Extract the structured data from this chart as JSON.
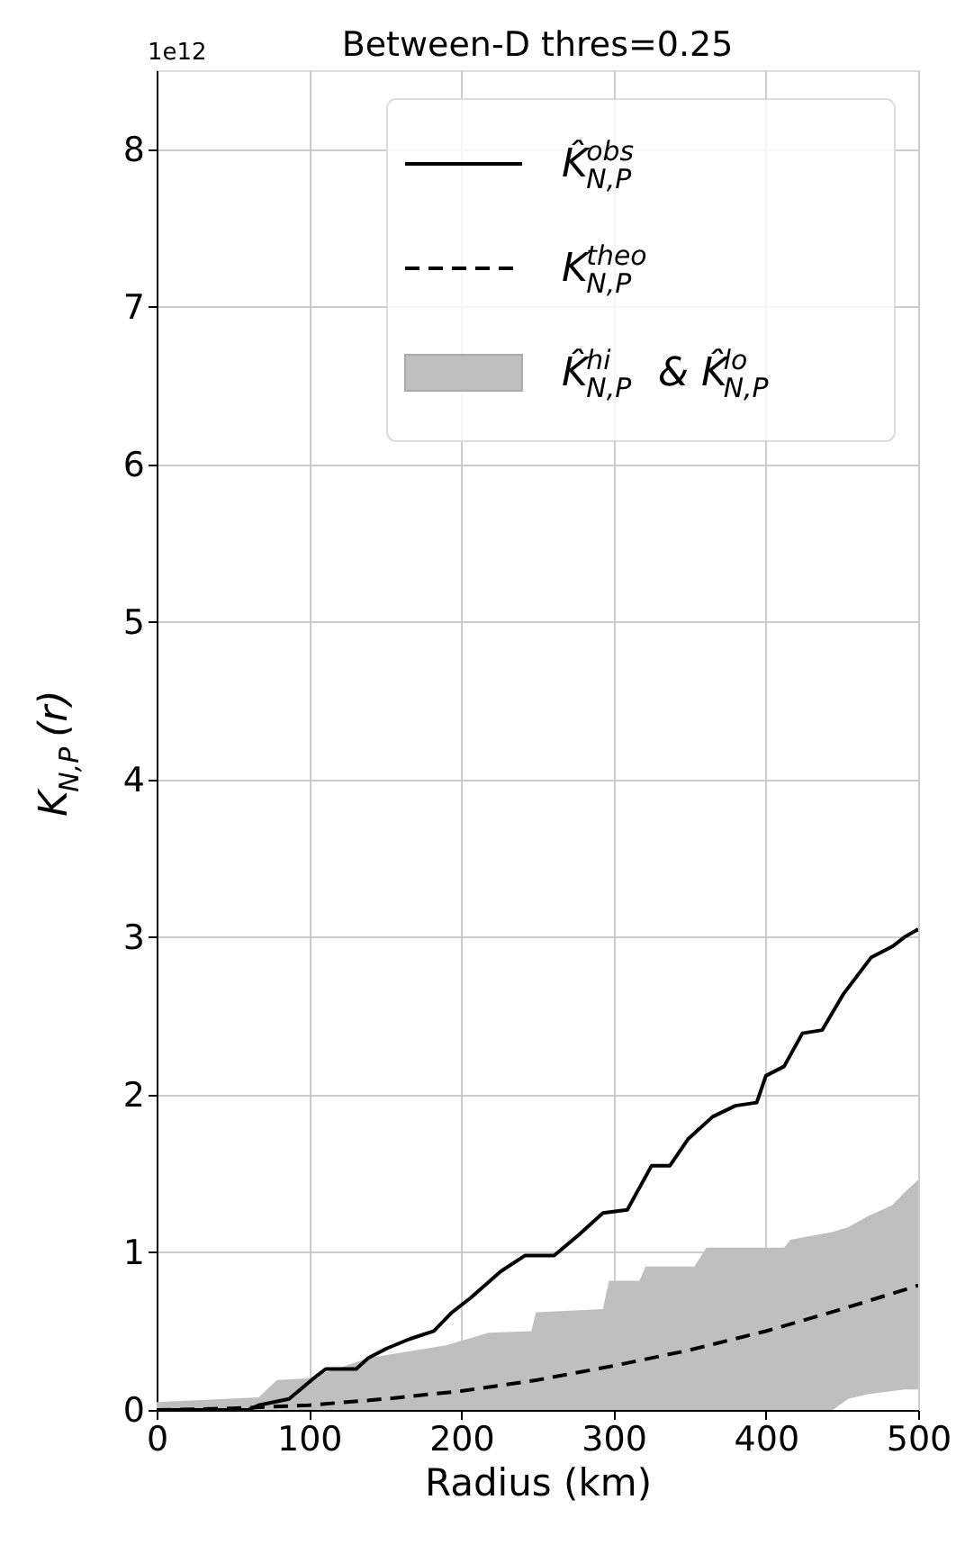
{
  "chart_data": {
    "type": "line",
    "title": "Between-D thres=0.25",
    "xlabel": "Radius (km)",
    "ylabel": "K$_{N,P}$(r)",
    "annotations": [
      "1e12"
    ],
    "xlim": [
      0,
      500
    ],
    "ylim": [
      0,
      8.5
    ],
    "xticks": [
      0,
      100,
      200,
      300,
      400,
      500
    ],
    "yticks": [
      0,
      1,
      2,
      3,
      4,
      5,
      6,
      7,
      8
    ],
    "grid": true,
    "legend": "top right",
    "series": [
      {
        "name": "K̂$^{hi}$$_{N,P}$ & K̂$^{lo}$$_{N,P}$",
        "type": "area",
        "color": "#bfbfbf",
        "x": [
          0,
          67,
          79,
          99,
          127,
          139,
          190,
          218,
          246,
          249,
          293,
          297,
          317,
          321,
          353,
          361,
          412,
          416,
          444,
          454,
          467,
          483,
          491,
          500
        ],
        "values": [
          null,
          null,
          null,
          null,
          null,
          null,
          null,
          null,
          null,
          null,
          null,
          null,
          null,
          null,
          null,
          null,
          null,
          null,
          null,
          null,
          null,
          null,
          null,
          null
        ],
        "upper": [
          0.05,
          0.08,
          0.19,
          0.2,
          0.29,
          0.33,
          0.41,
          0.49,
          0.5,
          0.62,
          0.64,
          0.82,
          0.82,
          0.91,
          0.91,
          1.03,
          1.03,
          1.08,
          1.13,
          1.16,
          1.23,
          1.3,
          1.38,
          1.46
        ],
        "lower": [
          0,
          0,
          0,
          0,
          0,
          0,
          0,
          0,
          0,
          0,
          0,
          0,
          0,
          0,
          0,
          0,
          0,
          0,
          0,
          0.07,
          0.1,
          0.12,
          0.13,
          0.13
        ]
      },
      {
        "name": "K̂$^{obs}$$_{N,P}$",
        "color": "#000000",
        "line_style": "solid",
        "x": [
          0,
          60,
          67,
          87,
          103,
          111,
          131,
          139,
          151,
          166,
          182,
          194,
          206,
          226,
          242,
          261,
          277,
          293,
          309,
          325,
          337,
          349,
          365,
          380,
          394,
          400,
          412,
          424,
          437,
          451,
          469,
          483,
          491,
          500
        ],
        "values": [
          0,
          0,
          0.03,
          0.07,
          0.2,
          0.26,
          0.26,
          0.33,
          0.39,
          0.45,
          0.5,
          0.62,
          0.71,
          0.88,
          0.98,
          0.98,
          1.11,
          1.25,
          1.27,
          1.55,
          1.55,
          1.72,
          1.86,
          1.93,
          1.95,
          2.12,
          2.18,
          2.39,
          2.41,
          2.64,
          2.87,
          2.94,
          3.0,
          3.05
        ]
      },
      {
        "name": "K$^{theo}$$_{N,P}$",
        "color": "#000000",
        "line_style": "dashed",
        "x": [
          0,
          50,
          100,
          150,
          200,
          250,
          300,
          350,
          400,
          450,
          500
        ],
        "values": [
          0,
          0.01,
          0.03,
          0.07,
          0.12,
          0.19,
          0.28,
          0.38,
          0.5,
          0.64,
          0.79
        ]
      }
    ]
  }
}
